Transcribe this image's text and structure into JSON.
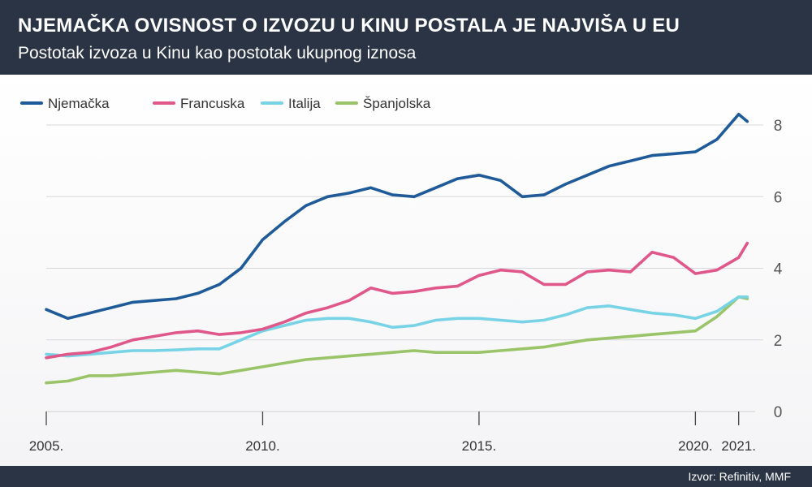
{
  "header": {
    "title": "NJEMAČKA OVISNOST O IZVOZU U KINU POSTALA JE NAJVIŠA U EU",
    "subtitle": "Postotak izvoza u Kinu kao postotak ukupnog iznosa"
  },
  "footer": {
    "source": "Izvor: Refinitiv, MMF"
  },
  "chart_data": {
    "type": "line",
    "title": "NJEMAČKA OVISNOST O IZVOZU U KINU POSTALA JE NAJVIŠA U EU",
    "subtitle": "Postotak izvoza u Kinu kao postotak ukupnog iznosa",
    "xlim": [
      2005.0,
      2021.4
    ],
    "ylim": [
      0,
      8.5
    ],
    "x_ticks": [
      2005,
      2010,
      2015,
      2020,
      2021
    ],
    "x_tick_labels": [
      "2005.",
      "2010.",
      "2015.",
      "2020.",
      "2021."
    ],
    "y_ticks": [
      0,
      2,
      4,
      6,
      8
    ],
    "y_tick_labels": [
      "0",
      "2",
      "4",
      "6",
      "8"
    ],
    "grid": "horizontal",
    "legend": "top-left",
    "x": [
      2005.0,
      2005.5,
      2006.0,
      2006.5,
      2007.0,
      2007.5,
      2008.0,
      2008.5,
      2009.0,
      2009.5,
      2010.0,
      2010.5,
      2011.0,
      2011.5,
      2012.0,
      2012.5,
      2013.0,
      2013.5,
      2014.0,
      2014.5,
      2015.0,
      2015.5,
      2016.0,
      2016.5,
      2017.0,
      2017.5,
      2018.0,
      2018.5,
      2019.0,
      2019.5,
      2020.0,
      2020.5,
      2021.0,
      2021.2
    ],
    "series": [
      {
        "name": "Njemačka",
        "color": "#1f5b99",
        "values": [
          2.85,
          2.6,
          2.75,
          2.9,
          3.05,
          3.1,
          3.15,
          3.3,
          3.55,
          4.0,
          4.8,
          5.3,
          5.75,
          6.0,
          6.1,
          6.25,
          6.05,
          6.0,
          6.25,
          6.5,
          6.6,
          6.45,
          6.0,
          6.05,
          6.35,
          6.6,
          6.85,
          7.0,
          7.15,
          7.2,
          7.25,
          7.6,
          8.3,
          8.1
        ]
      },
      {
        "name": "Francuska",
        "color": "#e0588a",
        "values": [
          1.5,
          1.6,
          1.65,
          1.8,
          2.0,
          2.1,
          2.2,
          2.25,
          2.15,
          2.2,
          2.3,
          2.5,
          2.75,
          2.9,
          3.1,
          3.45,
          3.3,
          3.35,
          3.45,
          3.5,
          3.8,
          3.95,
          3.9,
          3.55,
          3.55,
          3.9,
          3.95,
          3.9,
          4.45,
          4.3,
          3.85,
          3.95,
          4.3,
          4.7
        ]
      },
      {
        "name": "Italija",
        "color": "#78d3e6",
        "values": [
          1.6,
          1.55,
          1.6,
          1.65,
          1.7,
          1.7,
          1.72,
          1.75,
          1.75,
          2.0,
          2.25,
          2.4,
          2.55,
          2.6,
          2.6,
          2.5,
          2.35,
          2.4,
          2.55,
          2.6,
          2.6,
          2.55,
          2.5,
          2.55,
          2.7,
          2.9,
          2.95,
          2.85,
          2.75,
          2.7,
          2.6,
          2.8,
          3.2,
          3.2
        ]
      },
      {
        "name": "Španjolska",
        "color": "#9ac468",
        "values": [
          0.8,
          0.85,
          1.0,
          1.0,
          1.05,
          1.1,
          1.15,
          1.1,
          1.05,
          1.15,
          1.25,
          1.35,
          1.45,
          1.5,
          1.55,
          1.6,
          1.65,
          1.7,
          1.65,
          1.65,
          1.65,
          1.7,
          1.75,
          1.8,
          1.9,
          2.0,
          2.05,
          2.1,
          2.15,
          2.2,
          2.25,
          2.65,
          3.2,
          3.15
        ]
      }
    ]
  }
}
